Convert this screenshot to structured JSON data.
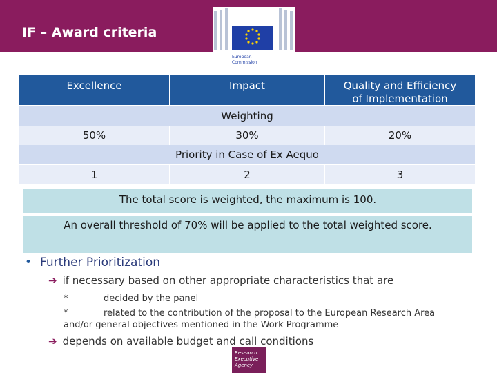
{
  "header": {
    "title": "IF – Award criteria",
    "logo_line1": "European",
    "logo_line2": "Commission"
  },
  "criteria": {
    "excellence": "Excellence",
    "impact": "Impact",
    "quality_line1": "Quality and Efficiency",
    "quality_line2": "of Implementation"
  },
  "weighting": {
    "label": "Weighting",
    "values": [
      "50%",
      "30%",
      "20%"
    ]
  },
  "priority": {
    "label": "Priority in Case of Ex Aequo",
    "values": [
      "1",
      "2",
      "3"
    ]
  },
  "notes": {
    "total_score": "The total score is weighted, the maximum is 100.",
    "threshold": "An overall threshold of 70% will be applied to the total weighted score."
  },
  "prioritization": {
    "bullet": "•",
    "heading": "Further Prioritization",
    "arrow": "➔",
    "line1": "if necessary based on other appropriate characteristics that are",
    "star": "*",
    "sub1": "decided by the panel",
    "sub2": "related to the contribution of the proposal to the European Research Area and/or general objectives mentioned in the Work Programme",
    "line2": "depends on available budget and call conditions"
  },
  "agency_logo": {
    "line1": "Research",
    "line2": "Executive",
    "line3": "Agency"
  },
  "colors": {
    "header_bg": "#8a1c5e",
    "table_header_bg": "#21599c",
    "band_bg": "#cfdaf0",
    "note_bg": "#bfe0e6"
  }
}
